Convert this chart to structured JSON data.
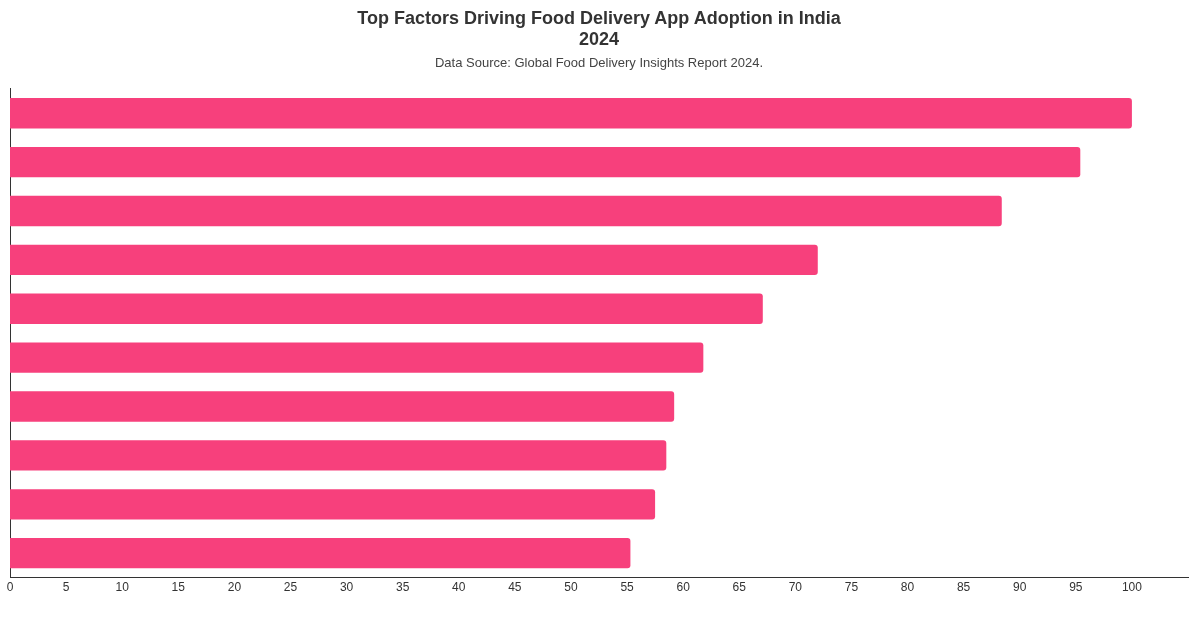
{
  "chart_data": {
    "type": "bar",
    "orientation": "horizontal",
    "title": "Top Factors Driving Food Delivery App Adoption in India\n2024",
    "subtitle": "Data Source: Global Food Delivery Insights Report 2024.",
    "categories": [
      null,
      null,
      null,
      null,
      null,
      null,
      null,
      null,
      null,
      null
    ],
    "values": [
      100,
      95.4,
      88.4,
      72,
      67.1,
      61.8,
      59.2,
      58.5,
      57.5,
      55.3
    ],
    "color": "#f7407c",
    "xlim": [
      0,
      105
    ],
    "xticks": [
      0,
      5,
      10,
      15,
      20,
      25,
      30,
      35,
      40,
      45,
      50,
      55,
      60,
      65,
      70,
      75,
      80,
      85,
      90,
      95,
      100
    ],
    "grid": false,
    "legend": false
  }
}
